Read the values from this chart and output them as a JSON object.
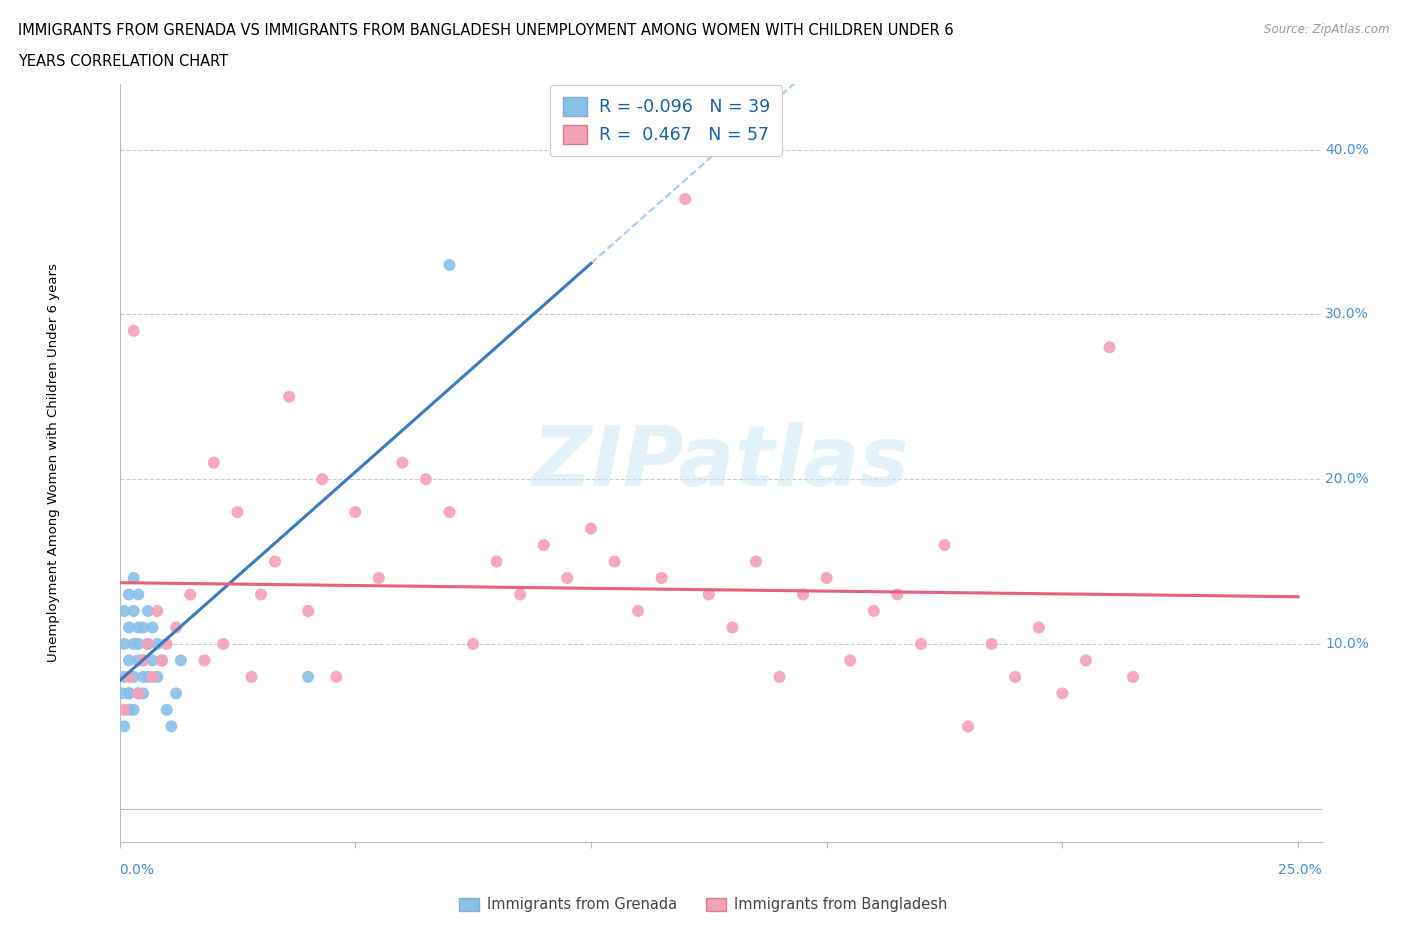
{
  "title_line1": "IMMIGRANTS FROM GRENADA VS IMMIGRANTS FROM BANGLADESH UNEMPLOYMENT AMONG WOMEN WITH CHILDREN UNDER 6",
  "title_line2": "YEARS CORRELATION CHART",
  "source": "Source: ZipAtlas.com",
  "ylabel": "Unemployment Among Women with Children Under 6 years",
  "grenada_color": "#89c0e8",
  "bangladesh_color": "#f4a0b5",
  "grenada_line_color": "#3a7abf",
  "bangladesh_line_color": "#e8607a",
  "grenada_dash_color": "#aaccee",
  "grenada_R": -0.096,
  "grenada_N": 39,
  "bangladesh_R": 0.467,
  "bangladesh_N": 57,
  "watermark": "ZIPatlas",
  "xlim": [
    0.0,
    0.255
  ],
  "ylim": [
    -0.02,
    0.44
  ],
  "grenada_x": [
    0.0005,
    0.001,
    0.001,
    0.001,
    0.001,
    0.002,
    0.002,
    0.002,
    0.002,
    0.002,
    0.002,
    0.003,
    0.003,
    0.003,
    0.003,
    0.003,
    0.004,
    0.004,
    0.004,
    0.004,
    0.004,
    0.005,
    0.005,
    0.005,
    0.005,
    0.006,
    0.006,
    0.006,
    0.007,
    0.007,
    0.008,
    0.008,
    0.009,
    0.01,
    0.011,
    0.012,
    0.013,
    0.04,
    0.07
  ],
  "grenada_y": [
    0.07,
    0.05,
    0.08,
    0.1,
    0.12,
    0.06,
    0.07,
    0.09,
    0.11,
    0.13,
    0.07,
    0.06,
    0.08,
    0.1,
    0.12,
    0.14,
    0.07,
    0.09,
    0.11,
    0.13,
    0.1,
    0.07,
    0.09,
    0.11,
    0.08,
    0.08,
    0.1,
    0.12,
    0.09,
    0.11,
    0.08,
    0.1,
    0.09,
    0.06,
    0.05,
    0.07,
    0.09,
    0.08,
    0.33
  ],
  "bangladesh_x": [
    0.001,
    0.002,
    0.003,
    0.004,
    0.005,
    0.006,
    0.007,
    0.008,
    0.009,
    0.01,
    0.012,
    0.015,
    0.018,
    0.02,
    0.022,
    0.025,
    0.028,
    0.03,
    0.033,
    0.036,
    0.04,
    0.043,
    0.046,
    0.05,
    0.055,
    0.06,
    0.065,
    0.07,
    0.075,
    0.08,
    0.085,
    0.09,
    0.095,
    0.1,
    0.105,
    0.11,
    0.115,
    0.12,
    0.125,
    0.13,
    0.135,
    0.14,
    0.145,
    0.15,
    0.155,
    0.16,
    0.165,
    0.17,
    0.175,
    0.18,
    0.185,
    0.19,
    0.195,
    0.2,
    0.205,
    0.21,
    0.215
  ],
  "bangladesh_y": [
    0.06,
    0.08,
    0.29,
    0.07,
    0.09,
    0.1,
    0.08,
    0.12,
    0.09,
    0.1,
    0.11,
    0.13,
    0.09,
    0.21,
    0.1,
    0.18,
    0.08,
    0.13,
    0.15,
    0.25,
    0.12,
    0.2,
    0.08,
    0.18,
    0.14,
    0.21,
    0.2,
    0.18,
    0.1,
    0.15,
    0.13,
    0.16,
    0.14,
    0.17,
    0.15,
    0.12,
    0.14,
    0.37,
    0.13,
    0.11,
    0.15,
    0.08,
    0.13,
    0.14,
    0.09,
    0.12,
    0.13,
    0.1,
    0.16,
    0.05,
    0.1,
    0.08,
    0.11,
    0.07,
    0.09,
    0.28,
    0.08
  ]
}
